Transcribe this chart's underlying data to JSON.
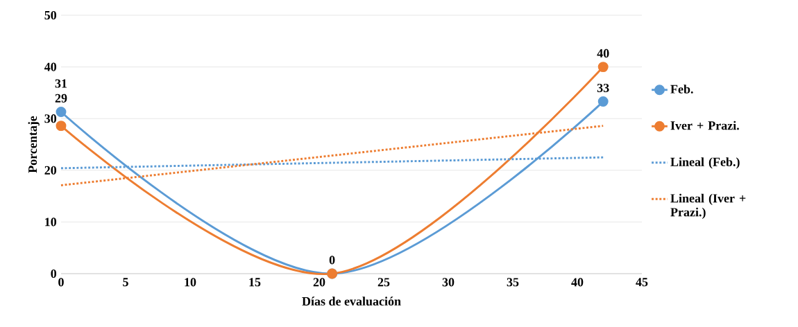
{
  "chart_data": {
    "type": "line",
    "xlabel": "Días de evaluación",
    "ylabel": "Porcentaje",
    "xlim": [
      0,
      45
    ],
    "ylim": [
      0,
      50
    ],
    "xticks": [
      0,
      5,
      10,
      15,
      20,
      25,
      30,
      35,
      40,
      45
    ],
    "yticks": [
      0,
      10,
      20,
      30,
      40,
      50
    ],
    "grid": "y",
    "legend": "right",
    "marker": "circle",
    "series": [
      {
        "name": "Feb.",
        "color": "#5b9bd5",
        "x": [
          0,
          21,
          42
        ],
        "values": [
          31.3,
          0,
          33.3
        ],
        "value_labels": [
          "31",
          "0",
          "33"
        ]
      },
      {
        "name": "Iver + Prazi.",
        "color": "#ed7d31",
        "x": [
          0,
          21,
          42
        ],
        "values": [
          28.6,
          0,
          40
        ],
        "value_labels": [
          "29",
          null,
          "40"
        ]
      },
      {
        "name": "Lineal (Feb.)",
        "color": "#5b9bd5",
        "x": [
          0,
          42
        ],
        "values": [
          20.4,
          22.5
        ],
        "marker": "none",
        "line_style": "dotted"
      },
      {
        "name": "Lineal (Iver + Prazi.)",
        "color": "#ed7d31",
        "x": [
          0,
          42
        ],
        "values": [
          17.1,
          28.6
        ],
        "marker": "none",
        "line_style": "dotted"
      }
    ]
  }
}
